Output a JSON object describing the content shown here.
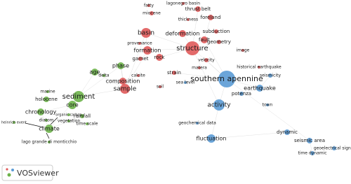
{
  "clusters": {
    "red": "#e05a5a",
    "green": "#6db24a",
    "blue": "#5b9bd5"
  },
  "nodes": [
    {
      "label": "fatty",
      "cluster": "red"
    },
    {
      "label": "lagonegro basin",
      "cluster": "red"
    },
    {
      "label": "thrust belt",
      "cluster": "red"
    },
    {
      "label": "miocene",
      "cluster": "red"
    },
    {
      "label": "thickness",
      "cluster": "red"
    },
    {
      "label": "foreland",
      "cluster": "red"
    },
    {
      "label": "basin",
      "cluster": "red"
    },
    {
      "label": "deformation",
      "cluster": "red"
    },
    {
      "label": "subduction",
      "cluster": "red"
    },
    {
      "label": "fault",
      "cluster": "red"
    },
    {
      "label": "geometry",
      "cluster": "red"
    },
    {
      "label": "provenance",
      "cluster": "red"
    },
    {
      "label": "structure",
      "cluster": "red"
    },
    {
      "label": "formation",
      "cluster": "red"
    },
    {
      "label": "image",
      "cluster": "red"
    },
    {
      "label": "garnet",
      "cluster": "red"
    },
    {
      "label": "rock",
      "cluster": "red"
    },
    {
      "label": "velocity",
      "cluster": "red"
    },
    {
      "label": "phase",
      "cluster": "green"
    },
    {
      "label": "matera",
      "cluster": "red"
    },
    {
      "label": "historical earthquake",
      "cluster": "red"
    },
    {
      "label": "age",
      "cluster": "green"
    },
    {
      "label": "delta",
      "cluster": "green"
    },
    {
      "label": "calcite",
      "cluster": "red"
    },
    {
      "label": "strain",
      "cluster": "red"
    },
    {
      "label": "southern apennine",
      "cluster": "blue"
    },
    {
      "label": "seismicity",
      "cluster": "blue"
    },
    {
      "label": "composition",
      "cluster": "red"
    },
    {
      "label": "sea level",
      "cluster": "blue"
    },
    {
      "label": "soil",
      "cluster": "red"
    },
    {
      "label": "earthquake",
      "cluster": "blue"
    },
    {
      "label": "sample",
      "cluster": "red"
    },
    {
      "label": "marine",
      "cluster": "green"
    },
    {
      "label": "sediment",
      "cluster": "green"
    },
    {
      "label": "holocene",
      "cluster": "green"
    },
    {
      "label": "potenza",
      "cluster": "blue"
    },
    {
      "label": "activity",
      "cluster": "blue"
    },
    {
      "label": "town",
      "cluster": "blue"
    },
    {
      "label": "core",
      "cluster": "green"
    },
    {
      "label": "chronology",
      "cluster": "green"
    },
    {
      "label": "organic carbon",
      "cluster": "green"
    },
    {
      "label": "rainfall",
      "cluster": "green"
    },
    {
      "label": "diatom",
      "cluster": "green"
    },
    {
      "label": "vegetation",
      "cluster": "green"
    },
    {
      "label": "time scale",
      "cluster": "green"
    },
    {
      "label": "heinrich event",
      "cluster": "green"
    },
    {
      "label": "climate",
      "cluster": "green"
    },
    {
      "label": "geochemical data",
      "cluster": "blue"
    },
    {
      "label": "lago grande di monticchio",
      "cluster": "green"
    },
    {
      "label": "dynamic",
      "cluster": "blue"
    },
    {
      "label": "fluctuation",
      "cluster": "blue"
    },
    {
      "label": "seismic area",
      "cluster": "blue"
    },
    {
      "label": "geoelectrical signal",
      "cluster": "blue"
    },
    {
      "label": "time dynamic",
      "cluster": "blue"
    }
  ],
  "logo": {
    "text": "VOSviewer"
  }
}
